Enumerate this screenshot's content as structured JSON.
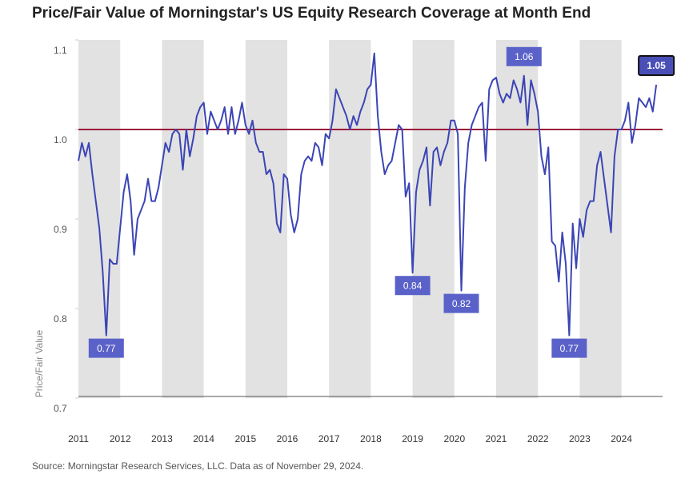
{
  "chart_data": {
    "type": "line",
    "title": "Price/Fair Value of Morningstar's US Equity Research Coverage at Month End",
    "y_label": "Price/Fair Value",
    "source": "Source: Morningstar Research Services, LLC. Data as of November 29, 2024.",
    "categories": [
      "2011",
      null,
      null,
      null,
      null,
      null,
      null,
      null,
      null,
      null,
      null,
      null,
      "2012",
      null,
      null,
      null,
      null,
      null,
      null,
      null,
      null,
      null,
      null,
      null,
      "2013",
      null,
      null,
      null,
      null,
      null,
      null,
      null,
      null,
      null,
      null,
      null,
      "2014",
      null,
      null,
      null,
      null,
      null,
      null,
      null,
      null,
      null,
      null,
      null,
      "2015",
      null,
      null,
      null,
      null,
      null,
      null,
      null,
      null,
      null,
      null,
      null,
      "2016",
      null,
      null,
      null,
      null,
      null,
      null,
      null,
      null,
      null,
      null,
      null,
      "2017",
      null,
      null,
      null,
      null,
      null,
      null,
      null,
      null,
      null,
      null,
      null,
      "2018",
      null,
      null,
      null,
      null,
      null,
      null,
      null,
      null,
      null,
      null,
      null,
      "2019",
      null,
      null,
      null,
      null,
      null,
      null,
      null,
      null,
      null,
      null,
      null,
      "2020",
      null,
      null,
      null,
      null,
      null,
      null,
      null,
      null,
      null,
      null,
      null,
      "2021",
      null,
      null,
      null,
      null,
      null,
      null,
      null,
      null,
      null,
      null,
      null,
      "2022",
      null,
      null,
      null,
      null,
      null,
      null,
      null,
      null,
      null,
      null,
      null,
      "2023",
      null,
      null,
      null,
      null,
      null,
      null,
      null,
      null,
      null,
      null,
      null,
      "2024",
      null,
      null,
      null,
      null,
      null,
      null,
      null,
      null,
      null,
      null
    ],
    "series": [
      {
        "name": "Price/Fair Value",
        "color": "#3b45b5",
        "values": [
          0.965,
          0.985,
          0.97,
          0.985,
          0.95,
          0.92,
          0.89,
          0.84,
          0.77,
          0.855,
          0.85,
          0.85,
          0.89,
          0.93,
          0.95,
          0.92,
          0.86,
          0.9,
          0.91,
          0.92,
          0.945,
          0.92,
          0.92,
          0.935,
          0.96,
          0.985,
          0.975,
          0.995,
          1.0,
          0.995,
          0.955,
          1.0,
          0.97,
          0.99,
          1.015,
          1.025,
          1.03,
          0.995,
          1.02,
          1.01,
          1.0,
          1.01,
          1.025,
          0.995,
          1.025,
          0.995,
          1.01,
          1.03,
          1.005,
          0.995,
          1.01,
          0.985,
          0.975,
          0.975,
          0.95,
          0.955,
          0.94,
          0.895,
          0.885,
          0.95,
          0.945,
          0.905,
          0.885,
          0.9,
          0.95,
          0.965,
          0.97,
          0.965,
          0.985,
          0.98,
          0.96,
          0.995,
          0.99,
          1.01,
          1.045,
          1.035,
          1.025,
          1.015,
          1.0,
          1.015,
          1.005,
          1.02,
          1.03,
          1.045,
          1.05,
          1.085,
          1.015,
          0.975,
          0.95,
          0.96,
          0.965,
          0.985,
          1.005,
          1.0,
          0.925,
          0.94,
          0.84,
          0.93,
          0.955,
          0.965,
          0.98,
          0.915,
          0.975,
          0.98,
          0.96,
          0.975,
          0.985,
          1.01,
          1.01,
          0.995,
          0.82,
          0.935,
          0.985,
          1.005,
          1.015,
          1.025,
          1.03,
          0.965,
          1.045,
          1.055,
          1.058,
          1.04,
          1.03,
          1.04,
          1.035,
          1.055,
          1.045,
          1.03,
          1.06,
          1.005,
          1.055,
          1.04,
          1.02,
          0.97,
          0.95,
          0.98,
          0.875,
          0.87,
          0.83,
          0.885,
          0.85,
          0.77,
          0.895,
          0.845,
          0.9,
          0.88,
          0.91,
          0.92,
          0.92,
          0.96,
          0.975,
          0.945,
          0.915,
          0.885,
          0.97,
          1.0,
          1.0,
          1.01,
          1.03,
          0.985,
          1.005,
          1.035,
          1.03,
          1.025,
          1.035,
          1.02,
          1.05
        ],
        "value_labels": [
          null,
          null,
          null,
          null,
          null,
          null,
          null,
          null,
          "0.77",
          null,
          null,
          null,
          null,
          null,
          null,
          null,
          null,
          null,
          null,
          null,
          null,
          null,
          null,
          null,
          null,
          null,
          null,
          null,
          null,
          null,
          null,
          null,
          null,
          null,
          null,
          null,
          null,
          null,
          null,
          null,
          null,
          null,
          null,
          null,
          null,
          null,
          null,
          null,
          null,
          null,
          null,
          null,
          null,
          null,
          null,
          null,
          null,
          null,
          null,
          null,
          null,
          null,
          null,
          null,
          null,
          null,
          null,
          null,
          null,
          null,
          null,
          null,
          null,
          null,
          null,
          null,
          null,
          null,
          null,
          null,
          null,
          null,
          null,
          null,
          null,
          null,
          null,
          null,
          null,
          null,
          null,
          null,
          null,
          null,
          null,
          null,
          "0.84",
          null,
          null,
          null,
          null,
          null,
          null,
          null,
          null,
          null,
          null,
          null,
          null,
          null,
          "0.82",
          null,
          null,
          null,
          null,
          null,
          null,
          null,
          null,
          null,
          null,
          null,
          null,
          null,
          null,
          null,
          null,
          null,
          "1.06",
          null,
          null,
          null,
          null,
          null,
          null,
          null,
          null,
          null,
          null,
          null,
          null,
          "0.77",
          null,
          null,
          null,
          null,
          null,
          null,
          null,
          null,
          null,
          null,
          null,
          null,
          null,
          null,
          null,
          null,
          null,
          null,
          null,
          null,
          null,
          null,
          null,
          null,
          "1.05"
        ]
      }
    ],
    "ylim": [
      0.7,
      1.1
    ],
    "yticks": [
      0.7,
      0.8,
      0.9,
      {
        "value": 1,
        "label": "1.0"
      },
      1.1
    ],
    "reference_line": {
      "value": 1,
      "color": "#9b1b3a"
    },
    "grid": false,
    "shade_color": "#e2e2e2"
  }
}
